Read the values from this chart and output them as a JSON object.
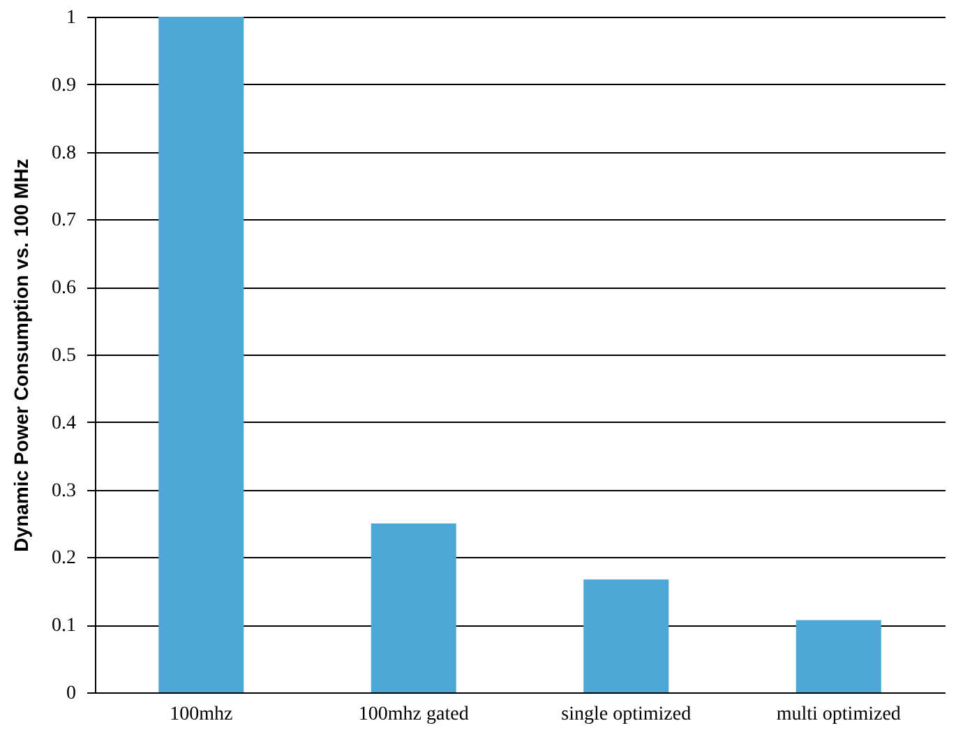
{
  "chart_data": {
    "type": "bar",
    "ylabel": "Dynamic Power Consumption vs. 100 MHz",
    "categories": [
      "100mhz",
      "100mhz gated",
      "single optimized",
      "multi optimized"
    ],
    "values": [
      1,
      0.25,
      0.167,
      0.107
    ],
    "color": "#4ea8d6",
    "ylim": [
      0,
      1
    ],
    "yticks": [
      0,
      0.1,
      0.2,
      0.3,
      0.4,
      0.5,
      0.6,
      0.7,
      0.8,
      0.9,
      1
    ],
    "grid": "y"
  }
}
